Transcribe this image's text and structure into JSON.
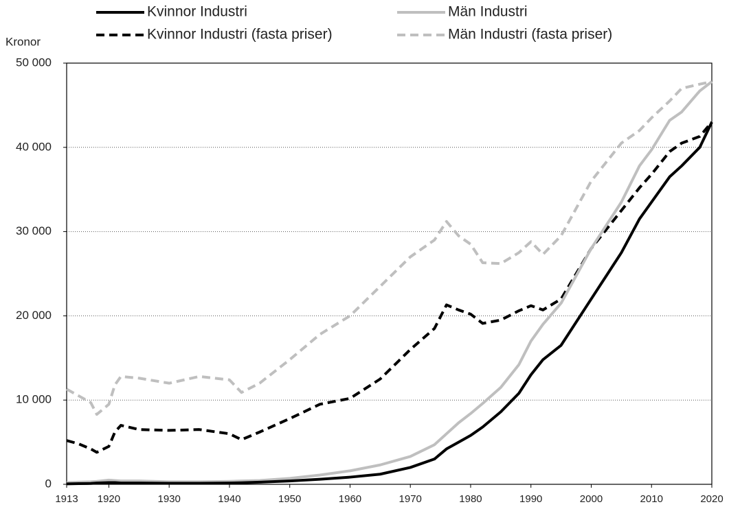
{
  "chart_data": {
    "type": "line",
    "y_label": "Kronor",
    "x": [
      1913,
      1915,
      1917,
      1918,
      1920,
      1921,
      1922,
      1925,
      1930,
      1935,
      1940,
      1942,
      1945,
      1950,
      1955,
      1960,
      1965,
      1970,
      1974,
      1976,
      1978,
      1980,
      1982,
      1985,
      1988,
      1990,
      1992,
      1995,
      2000,
      2005,
      2008,
      2010,
      2013,
      2015,
      2018,
      2020
    ],
    "series": [
      {
        "name": "Kvinnor Industri",
        "color": "#000000",
        "dash": false,
        "values": [
          50,
          80,
          100,
          150,
          200,
          200,
          150,
          150,
          120,
          120,
          150,
          180,
          250,
          400,
          600,
          850,
          1200,
          2000,
          3000,
          4200,
          5000,
          5800,
          6800,
          8600,
          10800,
          13000,
          14800,
          16500,
          22000,
          27500,
          31500,
          33500,
          36500,
          37800,
          40000,
          43000
        ]
      },
      {
        "name": "Män Industri",
        "color": "#bfbfbf",
        "dash": false,
        "values": [
          200,
          250,
          300,
          350,
          500,
          450,
          400,
          400,
          300,
          300,
          350,
          400,
          450,
          700,
          1100,
          1600,
          2300,
          3300,
          4700,
          6000,
          7300,
          8400,
          9600,
          11500,
          14200,
          17000,
          19000,
          21500,
          28000,
          33500,
          37800,
          39700,
          43200,
          44200,
          46700,
          47800
        ]
      },
      {
        "name": "Kvinnor Industri (fasta priser)",
        "color": "#000000",
        "dash": true,
        "values": [
          5200,
          4800,
          4200,
          3800,
          4500,
          6200,
          7000,
          6500,
          6400,
          6500,
          6000,
          5300,
          6200,
          7800,
          9500,
          10200,
          12500,
          16000,
          18500,
          21300,
          20700,
          20200,
          19100,
          19500,
          20600,
          21200,
          20700,
          22000,
          28000,
          32500,
          35200,
          36800,
          39500,
          40500,
          41300,
          43000
        ]
      },
      {
        "name": "Män Industri (fasta priser)",
        "color": "#bfbfbf",
        "dash": true,
        "values": [
          11300,
          10500,
          9700,
          8300,
          9500,
          11800,
          12800,
          12600,
          12000,
          12800,
          12400,
          10900,
          12000,
          14800,
          17800,
          20000,
          23500,
          27000,
          29000,
          31200,
          29500,
          28500,
          26300,
          26200,
          27500,
          28800,
          27300,
          29500,
          36000,
          40500,
          42000,
          43500,
          45500,
          47000,
          47500,
          47800
        ]
      }
    ],
    "xlim": [
      1913,
      2020
    ],
    "xticks": [
      1913,
      1920,
      1930,
      1940,
      1950,
      1960,
      1970,
      1980,
      1990,
      2000,
      2010,
      2020
    ],
    "ylim": [
      0,
      50000
    ],
    "yticks": [
      0,
      {
        "value": 10000,
        "label": "10 000"
      },
      {
        "value": 20000,
        "label": "20 000"
      },
      {
        "value": 30000,
        "label": "30 000"
      },
      {
        "value": 40000,
        "label": "40 000"
      },
      {
        "value": 50000,
        "label": "50 000"
      }
    ],
    "grid": true
  }
}
